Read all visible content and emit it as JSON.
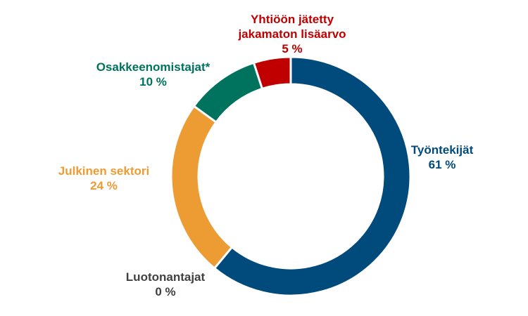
{
  "chart_data": {
    "type": "pie",
    "variant": "donut",
    "title": "",
    "slices": [
      {
        "label": "Työntekijät",
        "value": 61,
        "value_text": "61 %",
        "color": "#004A7C"
      },
      {
        "label": "Luotonantajat",
        "value": 0,
        "value_text": "0 %",
        "color": "#404040"
      },
      {
        "label": "Julkinen sektori",
        "value": 24,
        "value_text": "24 %",
        "color": "#EC9C32"
      },
      {
        "label": "Osakkeenomistajat*",
        "value": 10,
        "value_text": "10 %",
        "color": "#00735F"
      },
      {
        "label": "Yhtiöön jätetty jakamaton lisäarvo",
        "label_lines": [
          "Yhtiöön jätetty",
          "jakamaton lisäarvo"
        ],
        "value": 5,
        "value_text": "5 %",
        "color": "#C00000"
      }
    ],
    "legend": "none"
  }
}
